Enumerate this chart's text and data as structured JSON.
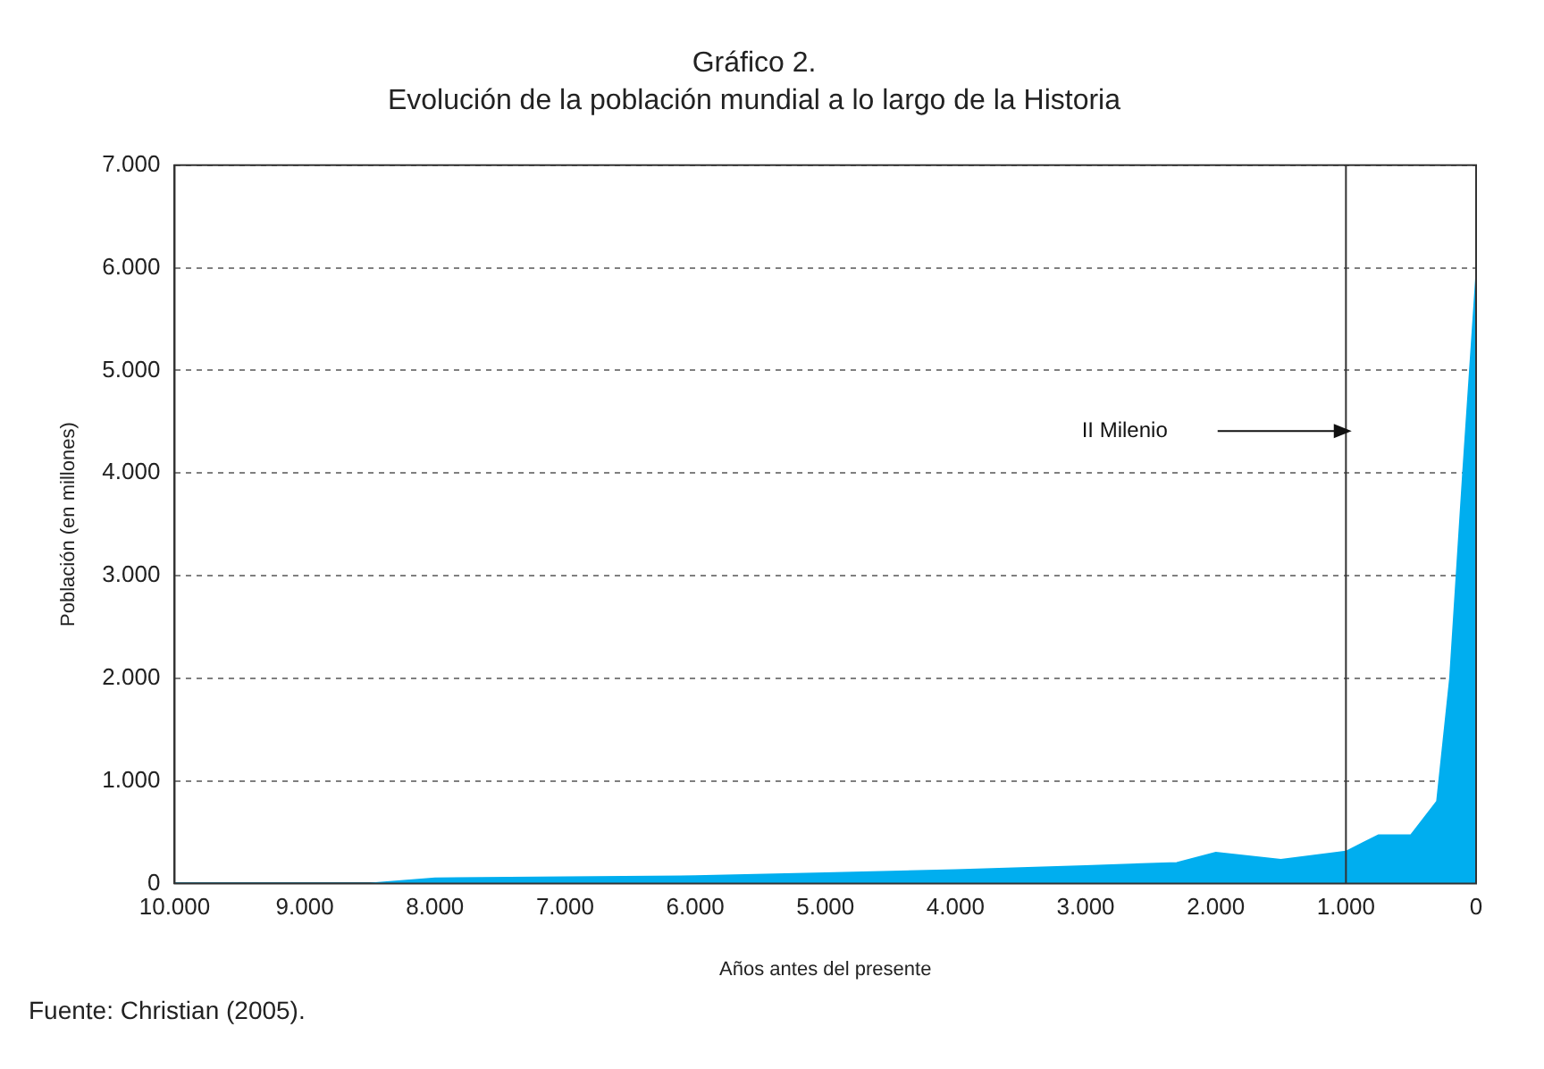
{
  "chart_data": {
    "type": "area",
    "title": "Gráfico 2.",
    "subtitle": "Evolución de la población mundial a lo largo de la Historia",
    "xlabel": "Años antes del presente",
    "ylabel": "Población (en millones)",
    "x": [
      10000,
      8500,
      8000,
      7000,
      6000,
      5000,
      4000,
      3000,
      2300,
      2000,
      1500,
      1000,
      750,
      500,
      300,
      200,
      100,
      0
    ],
    "series": [
      {
        "color": "#00aeef",
        "values": [
          0,
          0,
          50,
          60,
          70,
          100,
          130,
          170,
          200,
          300,
          230,
          310,
          470,
          470,
          800,
          2000,
          4000,
          5900
        ]
      }
    ],
    "xlim": [
      10000,
      0
    ],
    "xticks": [
      {
        "value": 10000,
        "label": "10.000"
      },
      {
        "value": 9000,
        "label": "9.000"
      },
      {
        "value": 8000,
        "label": "8.000"
      },
      {
        "value": 7000,
        "label": "7.000"
      },
      {
        "value": 6000,
        "label": "6.000"
      },
      {
        "value": 5000,
        "label": "5.000"
      },
      {
        "value": 4000,
        "label": "4.000"
      },
      {
        "value": 3000,
        "label": "3.000"
      },
      {
        "value": 2000,
        "label": "2.000"
      },
      {
        "value": 1000,
        "label": "1.000"
      },
      0
    ],
    "ylim": [
      0,
      7000
    ],
    "yticks": [
      0,
      {
        "value": 1000,
        "label": "1.000"
      },
      {
        "value": 2000,
        "label": "2.000"
      },
      {
        "value": 3000,
        "label": "3.000"
      },
      {
        "value": 4000,
        "label": "4.000"
      },
      {
        "value": 5000,
        "label": "5.000"
      },
      {
        "value": 6000,
        "label": "6.000"
      },
      {
        "value": 7000,
        "label": "7.000"
      }
    ],
    "grid": "y",
    "legend": false,
    "ref_lines": [
      {
        "axis": "x",
        "value": 1000,
        "color": "#333333"
      }
    ],
    "annotations": [
      "II Milenio",
      "Fuente: Christian (2005)."
    ]
  }
}
